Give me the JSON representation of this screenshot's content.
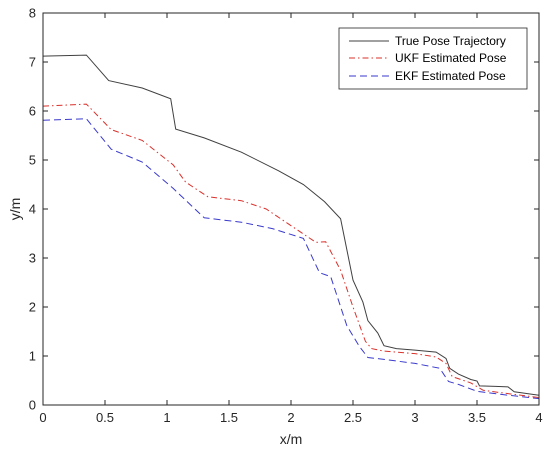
{
  "chart_data": {
    "type": "line",
    "title": "",
    "xlabel": "x/m",
    "ylabel": "y/m",
    "xlim": [
      0,
      4
    ],
    "ylim": [
      0,
      8
    ],
    "xticks": [
      "0",
      "0.5",
      "1",
      "1.5",
      "2",
      "2.5",
      "3",
      "3.5",
      "4"
    ],
    "yticks": [
      "0",
      "1",
      "2",
      "3",
      "4",
      "5",
      "6",
      "7",
      "8"
    ],
    "grid": false,
    "legend_position": "top-right",
    "series": [
      {
        "name": "True Pose Trajectory",
        "color": "#404040",
        "style": "solid",
        "points": [
          [
            0,
            7.12
          ],
          [
            0.35,
            7.14
          ],
          [
            0.53,
            6.62
          ],
          [
            0.8,
            6.47
          ],
          [
            1.03,
            6.25
          ],
          [
            1.07,
            5.63
          ],
          [
            1.3,
            5.45
          ],
          [
            1.6,
            5.16
          ],
          [
            1.9,
            4.78
          ],
          [
            2.1,
            4.5
          ],
          [
            2.27,
            4.15
          ],
          [
            2.4,
            3.8
          ],
          [
            2.5,
            2.55
          ],
          [
            2.58,
            2.1
          ],
          [
            2.62,
            1.72
          ],
          [
            2.7,
            1.47
          ],
          [
            2.75,
            1.21
          ],
          [
            2.85,
            1.15
          ],
          [
            3.0,
            1.12
          ],
          [
            3.17,
            1.08
          ],
          [
            3.25,
            0.95
          ],
          [
            3.28,
            0.75
          ],
          [
            3.35,
            0.63
          ],
          [
            3.45,
            0.52
          ],
          [
            3.5,
            0.49
          ],
          [
            3.52,
            0.39
          ],
          [
            3.65,
            0.38
          ],
          [
            3.75,
            0.37
          ],
          [
            3.8,
            0.27
          ],
          [
            4.0,
            0.2
          ]
        ]
      },
      {
        "name": "UKF Estimated Pose",
        "color": "#d9312b",
        "style": "dashdot",
        "points": [
          [
            0,
            6.1
          ],
          [
            0.1,
            6.11
          ],
          [
            0.35,
            6.14
          ],
          [
            0.55,
            5.62
          ],
          [
            0.8,
            5.4
          ],
          [
            1.0,
            5.0
          ],
          [
            1.05,
            4.9
          ],
          [
            1.15,
            4.55
          ],
          [
            1.33,
            4.25
          ],
          [
            1.6,
            4.17
          ],
          [
            1.8,
            4.0
          ],
          [
            2.2,
            3.32
          ],
          [
            2.28,
            3.33
          ],
          [
            2.4,
            2.75
          ],
          [
            2.5,
            2.0
          ],
          [
            2.6,
            1.3
          ],
          [
            2.65,
            1.15
          ],
          [
            2.75,
            1.1
          ],
          [
            3.0,
            1.05
          ],
          [
            3.17,
            0.98
          ],
          [
            3.25,
            0.85
          ],
          [
            3.3,
            0.58
          ],
          [
            3.45,
            0.45
          ],
          [
            3.55,
            0.3
          ],
          [
            3.7,
            0.25
          ],
          [
            4.0,
            0.15
          ]
        ]
      },
      {
        "name": "EKF Estimated Pose",
        "color": "#3a3acc",
        "style": "dashed",
        "points": [
          [
            0,
            5.81
          ],
          [
            0.35,
            5.84
          ],
          [
            0.55,
            5.22
          ],
          [
            0.8,
            4.96
          ],
          [
            1.05,
            4.42
          ],
          [
            1.3,
            3.82
          ],
          [
            1.6,
            3.73
          ],
          [
            1.85,
            3.6
          ],
          [
            2.1,
            3.4
          ],
          [
            2.23,
            2.7
          ],
          [
            2.32,
            2.62
          ],
          [
            2.45,
            1.62
          ],
          [
            2.55,
            1.2
          ],
          [
            2.62,
            0.97
          ],
          [
            2.75,
            0.93
          ],
          [
            3.0,
            0.85
          ],
          [
            3.2,
            0.75
          ],
          [
            3.27,
            0.48
          ],
          [
            3.35,
            0.42
          ],
          [
            3.5,
            0.28
          ],
          [
            3.75,
            0.2
          ],
          [
            4.0,
            0.13
          ]
        ]
      }
    ]
  }
}
